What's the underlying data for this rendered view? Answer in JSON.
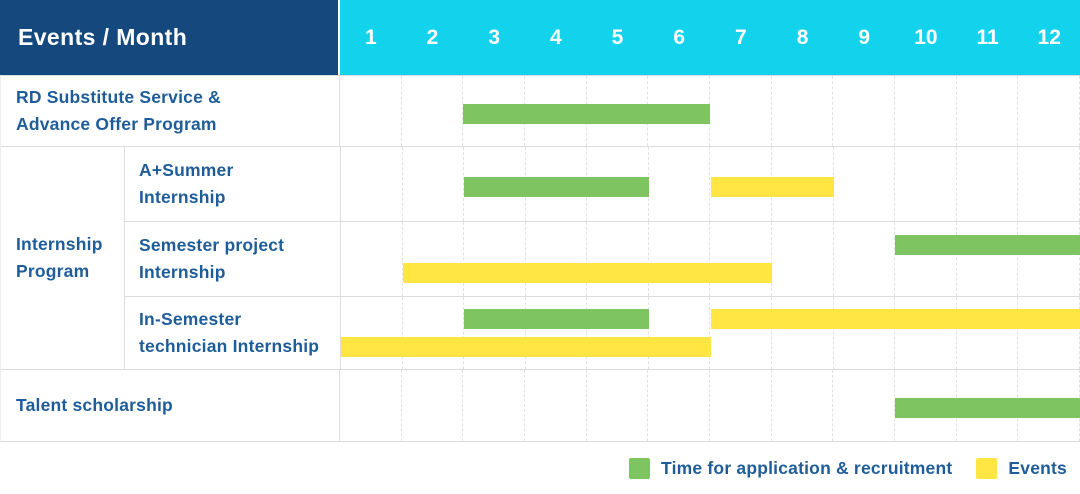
{
  "chart_data": {
    "type": "gantt",
    "title": "Events / Month",
    "months": [
      "1",
      "2",
      "3",
      "4",
      "5",
      "6",
      "7",
      "8",
      "9",
      "10",
      "11",
      "12"
    ],
    "month_axis_range": [
      1,
      12
    ],
    "grid": true,
    "colors": {
      "header_bg": "#15497E",
      "months_bg": "#12D2EC",
      "text_blue": "#1E5D99",
      "recruitment_green": "#7EC460",
      "event_yellow": "#FFE642",
      "gridline": "#DCDCDC"
    },
    "group_label": "Internship\nProgram",
    "rows": [
      {
        "label": "RD Substitute Service &\nAdvance Offer Program",
        "group": null,
        "bars": [
          {
            "kind": "recruitment",
            "start": 3,
            "end": 6,
            "lane": "single"
          }
        ]
      },
      {
        "label": "A+Summer\nInternship",
        "group": "Internship Program",
        "bars": [
          {
            "kind": "recruitment",
            "start": 3,
            "end": 5,
            "lane": "single"
          },
          {
            "kind": "event",
            "start": 7,
            "end": 8,
            "lane": "single"
          }
        ]
      },
      {
        "label": "Semester project\nInternship",
        "group": "Internship Program",
        "bars": [
          {
            "kind": "recruitment",
            "start": 10,
            "end": 12,
            "lane": "top"
          },
          {
            "kind": "event",
            "start": 2,
            "end": 7,
            "lane": "bottom"
          }
        ]
      },
      {
        "label": "In-Semester\ntechnician Internship",
        "group": "Internship Program",
        "bars": [
          {
            "kind": "recruitment",
            "start": 3,
            "end": 5,
            "lane": "top"
          },
          {
            "kind": "event",
            "start": 7,
            "end": 12,
            "lane": "top"
          },
          {
            "kind": "event",
            "start": 1,
            "end": 6,
            "lane": "bottom"
          }
        ]
      },
      {
        "label": "Talent scholarship",
        "group": null,
        "bars": [
          {
            "kind": "recruitment",
            "start": 10,
            "end": 12,
            "lane": "single"
          }
        ]
      }
    ],
    "legend": [
      {
        "kind": "recruitment",
        "label": "Time for application & recruitment",
        "color": "#7EC460"
      },
      {
        "kind": "event",
        "label": "Events",
        "color": "#FFE642"
      }
    ],
    "legend_position": "bottom-right"
  }
}
